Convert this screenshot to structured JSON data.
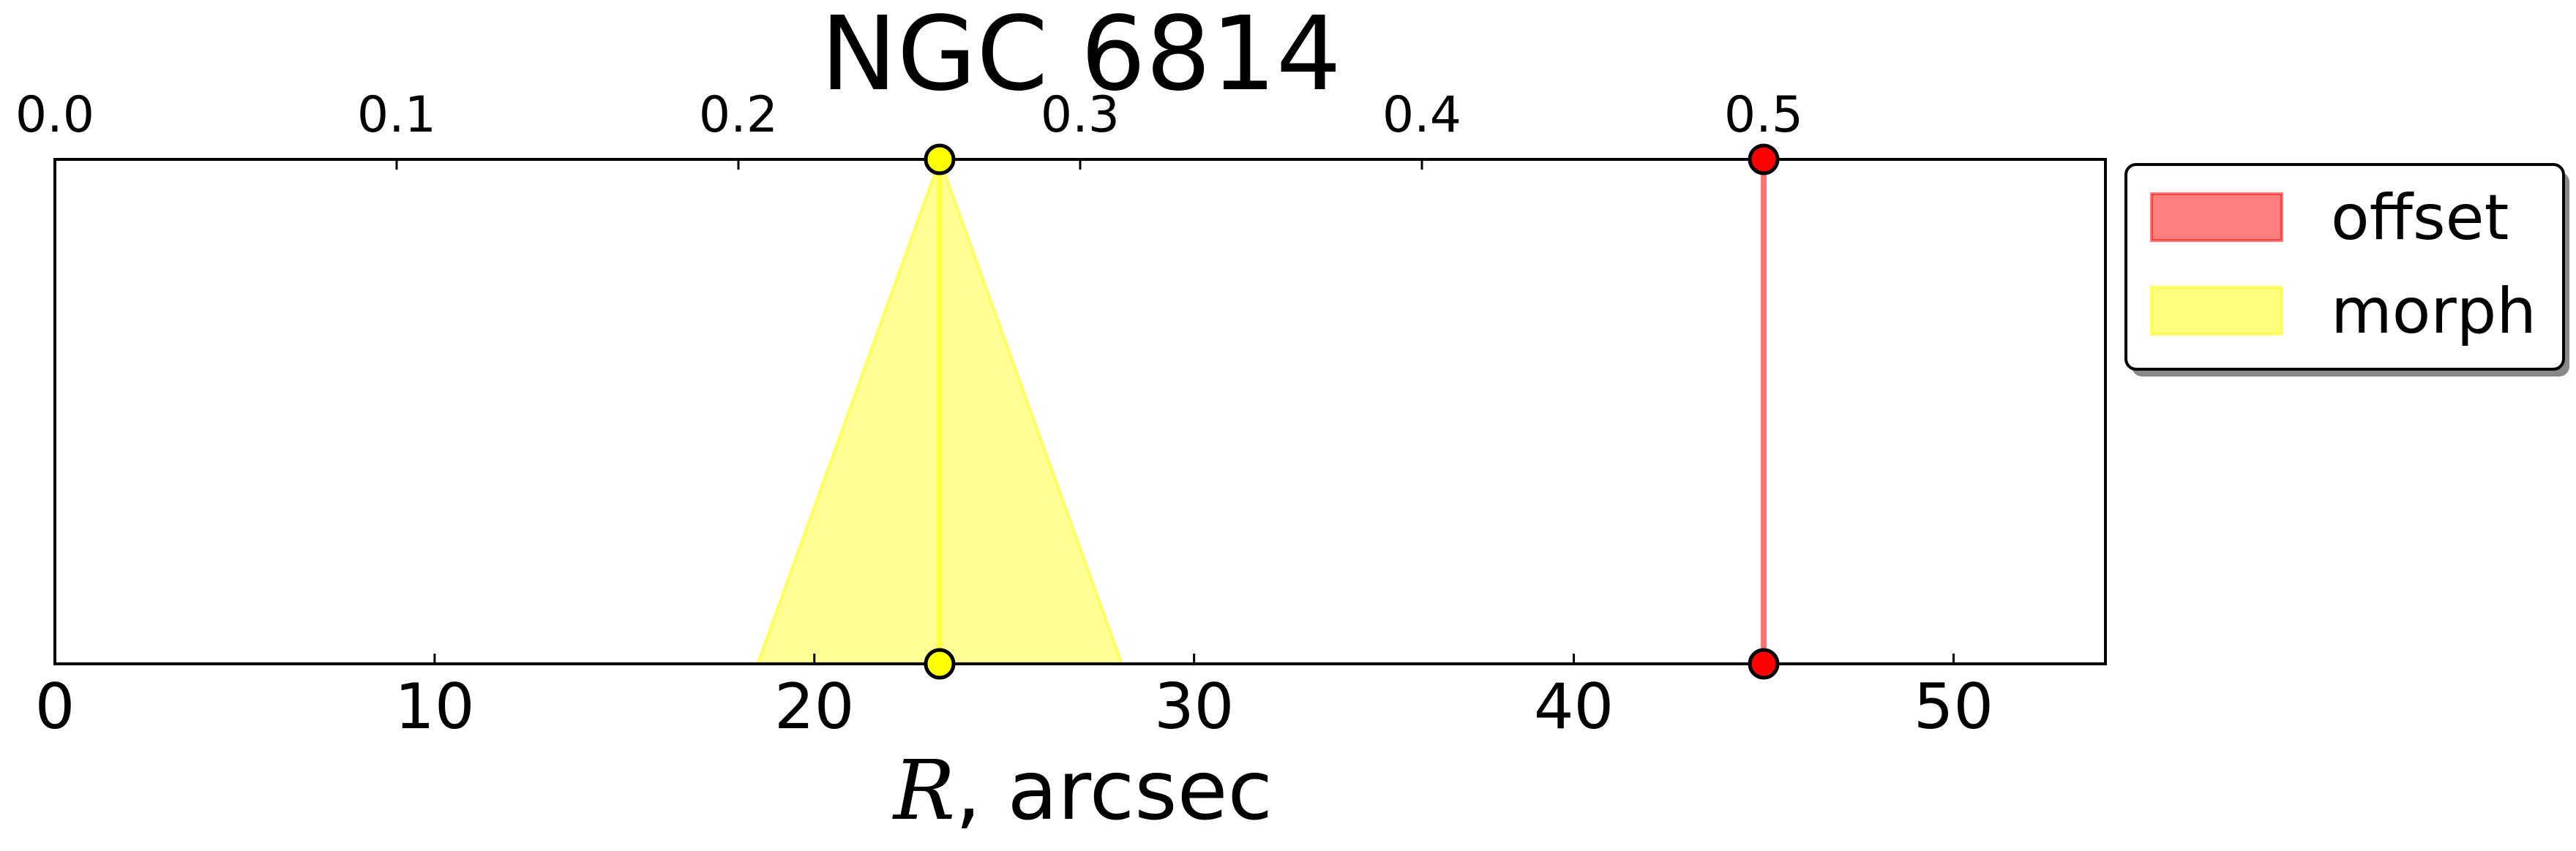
{
  "chart_data": {
    "type": "line",
    "title": "NGC 6814",
    "xlabel_var": "R",
    "xlabel_rest": ", arcsec",
    "ylabel": "",
    "xlim": [
      0,
      54
    ],
    "x_ticks": [
      "0",
      "10",
      "20",
      "30",
      "40",
      "50"
    ],
    "top_axis": {
      "xlim": [
        0,
        0.5
      ],
      "ticks": [
        "0.0",
        "0.1",
        "0.2",
        "0.3",
        "0.4",
        "0.5"
      ]
    },
    "grid": false,
    "legend_position": "outside-right-top",
    "series": [
      {
        "name": "offset",
        "color": "#ff0000",
        "x_top": 45.0,
        "x_bottom": 45.0,
        "spread_bottom": [
          45.0,
          45.0
        ]
      },
      {
        "name": "morph",
        "color": "#ffff00",
        "x_top": 23.3,
        "x_bottom": 23.3,
        "spread_bottom": [
          18.5,
          28.1
        ]
      }
    ]
  }
}
